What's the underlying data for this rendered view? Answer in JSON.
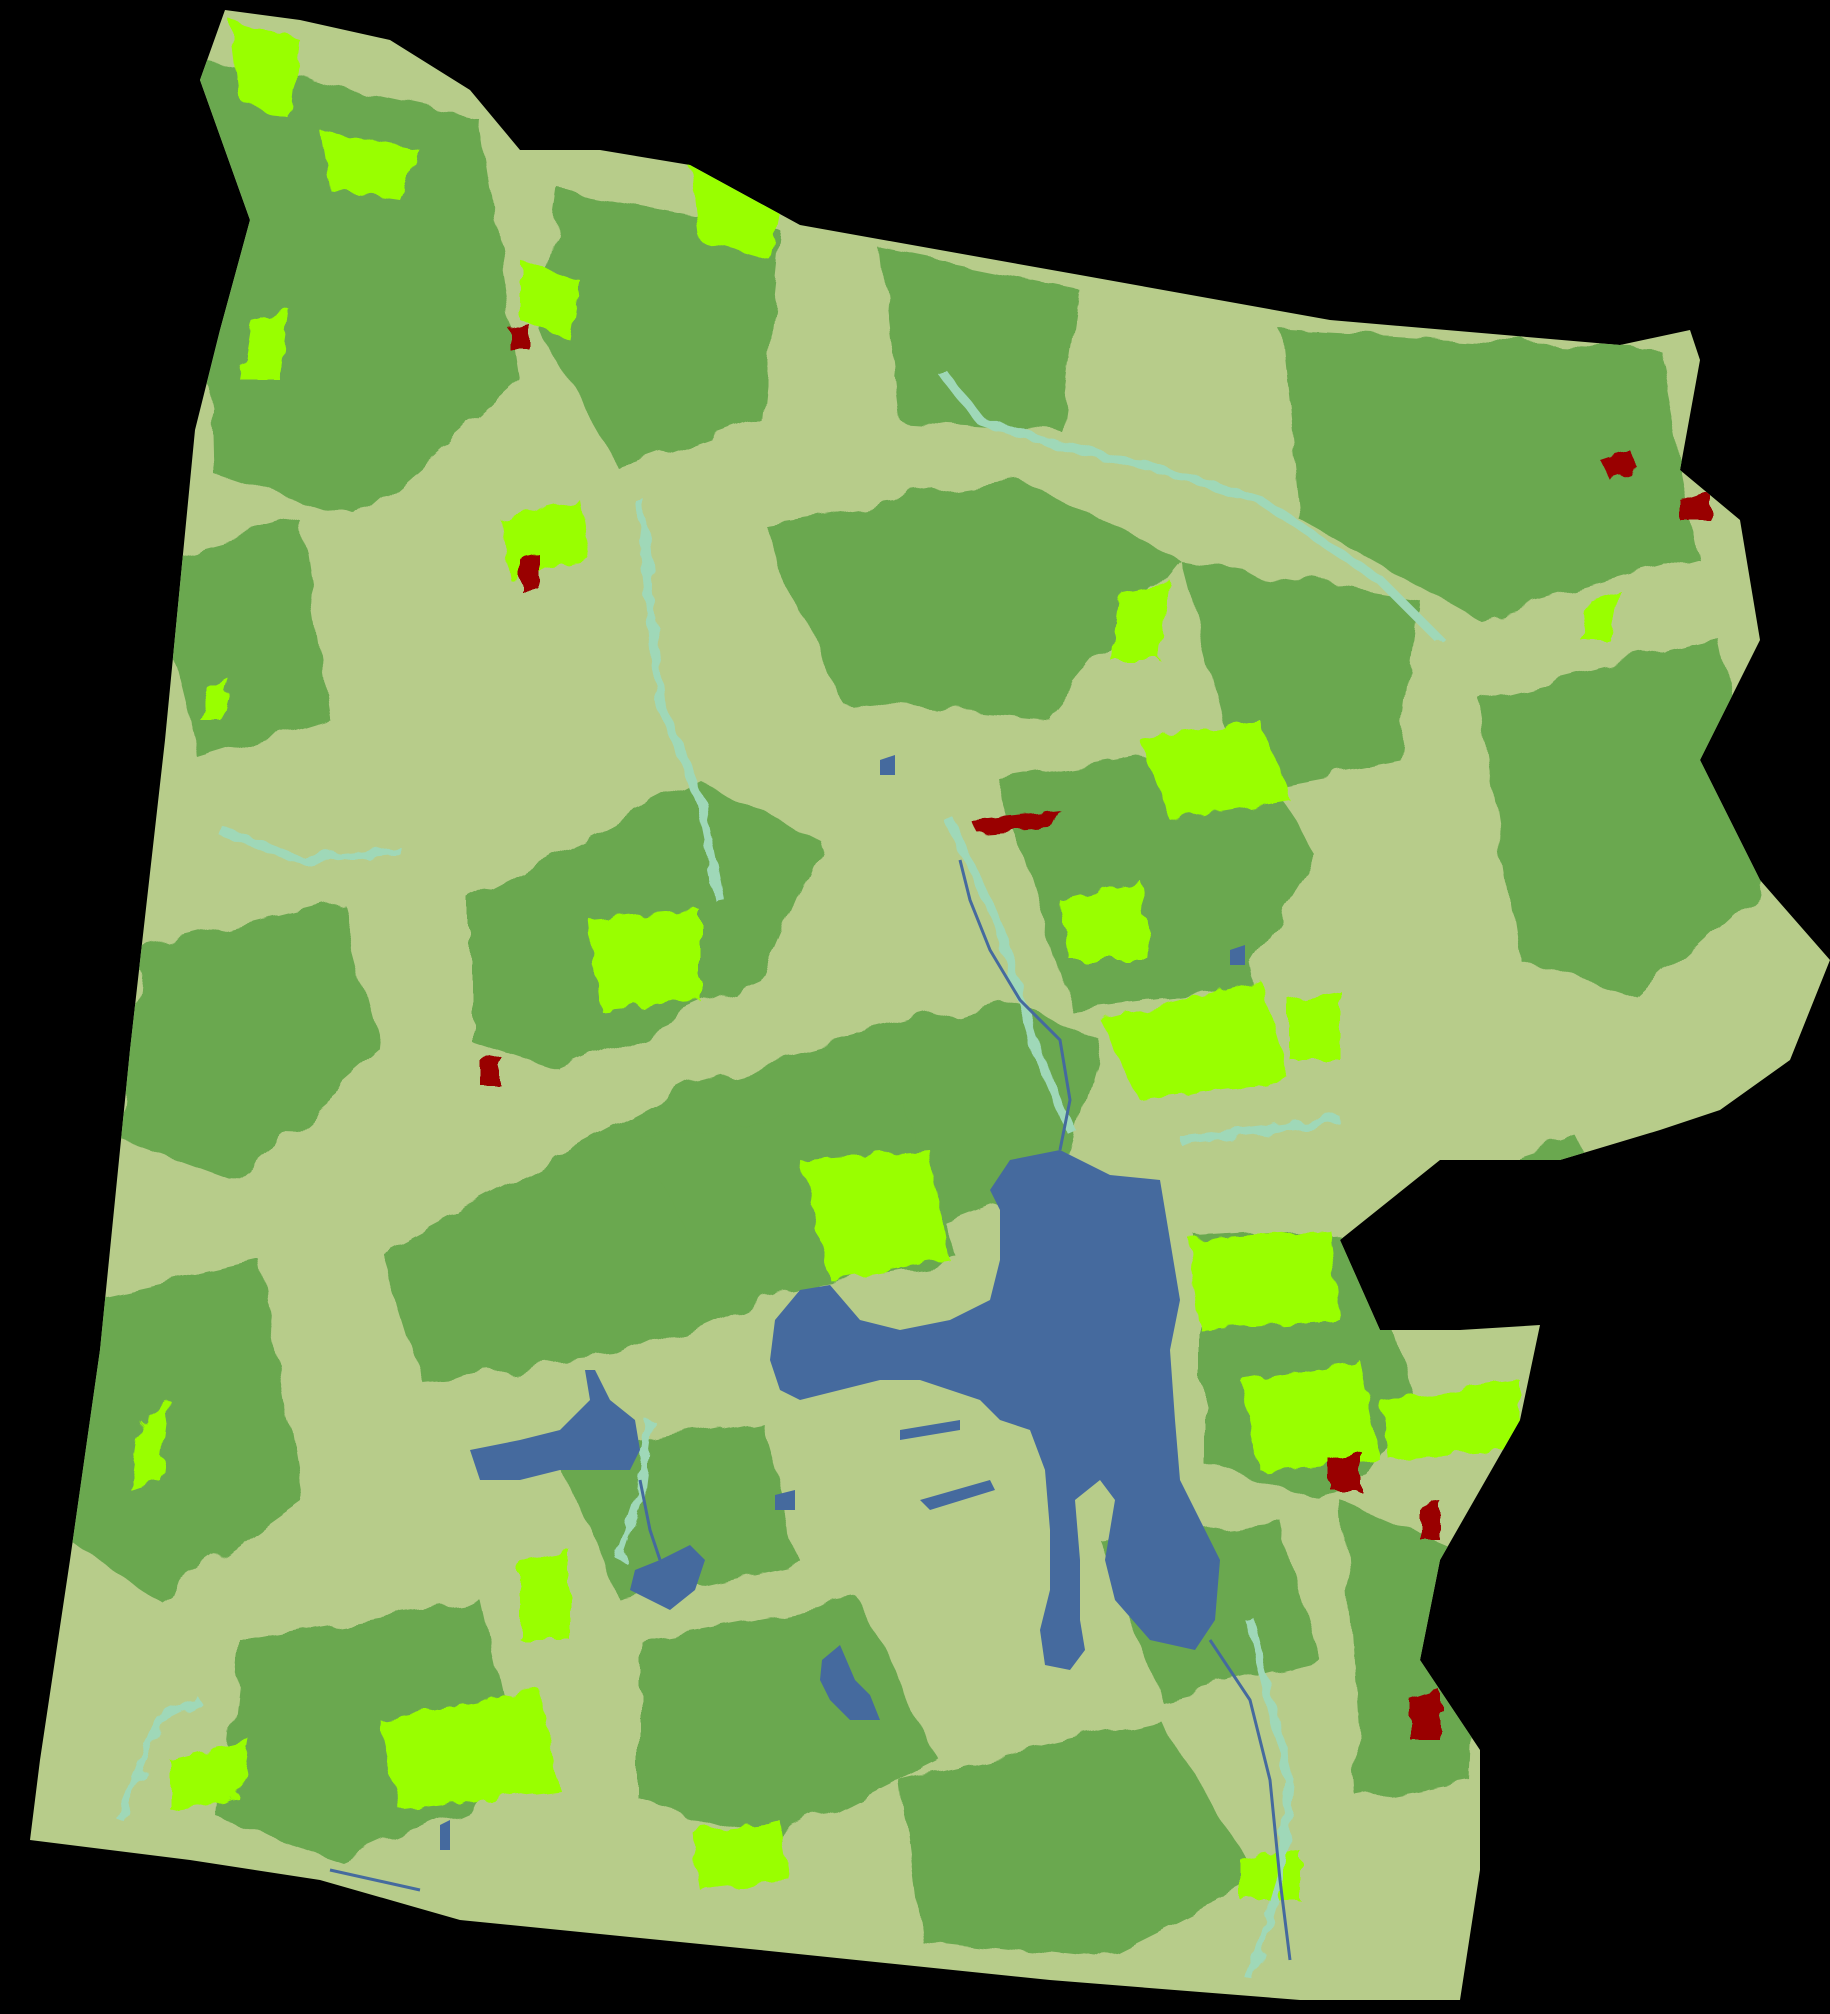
{
  "map": {
    "background": "#000000",
    "classes": [
      {
        "name": "forest",
        "color": "#6aa84f"
      },
      {
        "name": "grassland-shrub",
        "color": "#b7cc8a"
      },
      {
        "name": "regrowth-burned",
        "color": "#99ff00"
      },
      {
        "name": "water",
        "color": "#456a9e"
      },
      {
        "name": "riparian-wetland",
        "color": "#9fd8b8"
      },
      {
        "name": "bare-rock-red",
        "color": "#990000"
      }
    ]
  }
}
